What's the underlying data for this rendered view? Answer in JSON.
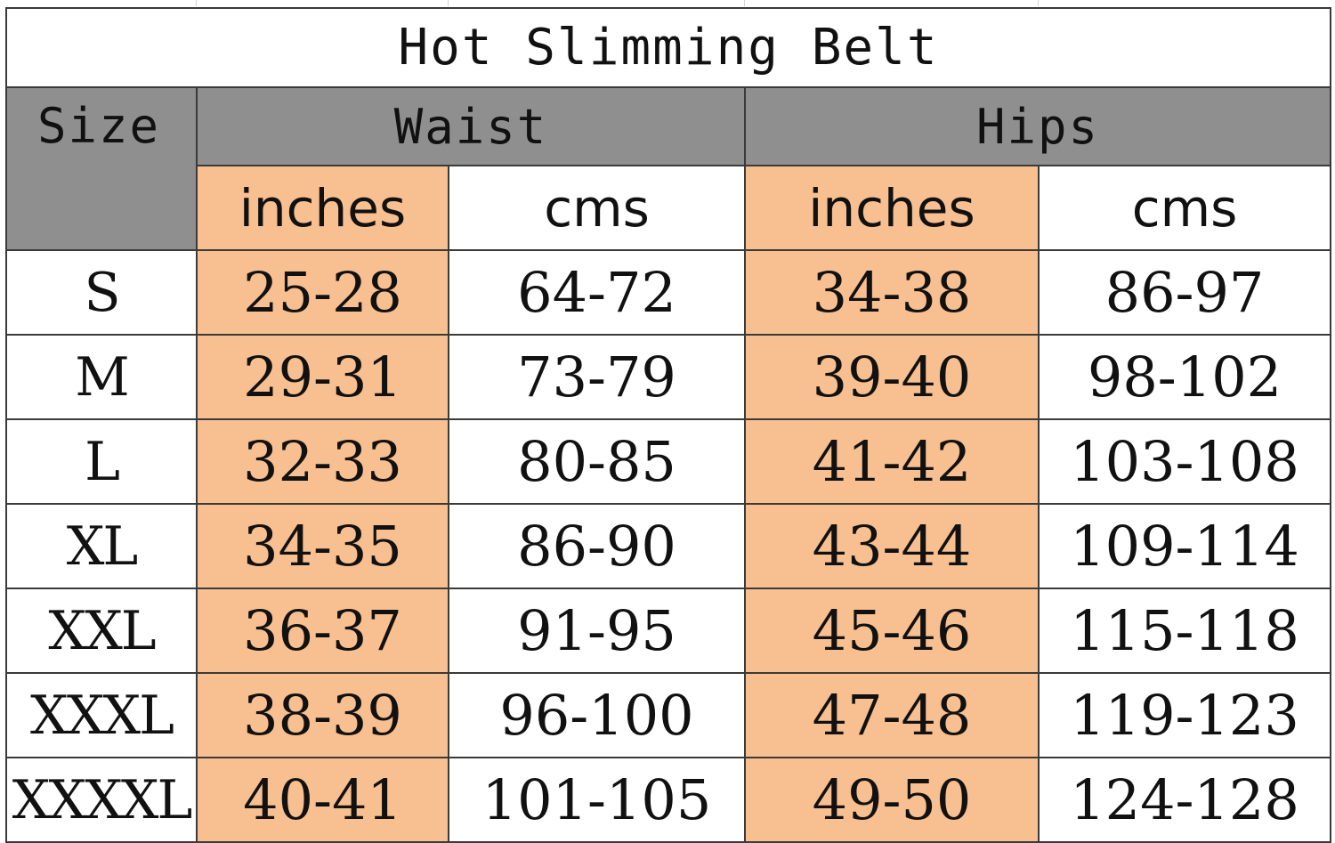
{
  "title": "Hot Slimming Belt",
  "headers": {
    "size": "Size",
    "waist": "Waist",
    "hips": "Hips"
  },
  "units": [
    "inches",
    "cms",
    "inches",
    "cms"
  ],
  "rows": [
    {
      "size": "S",
      "waist_in": "25-28",
      "waist_cm": "64-72",
      "hips_in": "34-38",
      "hips_cm": "86-97"
    },
    {
      "size": "M",
      "waist_in": "29-31",
      "waist_cm": "73-79",
      "hips_in": "39-40",
      "hips_cm": "98-102"
    },
    {
      "size": "L",
      "waist_in": "32-33",
      "waist_cm": "80-85",
      "hips_in": "41-42",
      "hips_cm": "103-108"
    },
    {
      "size": "XL",
      "waist_in": "34-35",
      "waist_cm": "86-90",
      "hips_in": "43-44",
      "hips_cm": "109-114"
    },
    {
      "size": "XXL",
      "waist_in": "36-37",
      "waist_cm": "91-95",
      "hips_in": "45-46",
      "hips_cm": "115-118"
    },
    {
      "size": "XXXL",
      "waist_in": "38-39",
      "waist_cm": "96-100",
      "hips_in": "47-48",
      "hips_cm": "119-123"
    },
    {
      "size": "XXXXL",
      "waist_in": "40-41",
      "waist_cm": "101-105",
      "hips_in": "49-50",
      "hips_cm": "124-128"
    }
  ],
  "colors": {
    "header_gray": "#8f8f8f",
    "inches_highlight": "#f8c090",
    "border": "#3a3a3a"
  }
}
